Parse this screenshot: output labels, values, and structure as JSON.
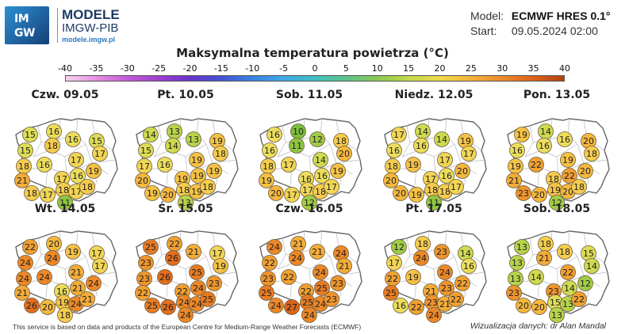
{
  "brand": {
    "logo_line1": "IM",
    "logo_line2": "GW",
    "title": "MODELE",
    "subtitle": "IMGW-PIB",
    "url": "modele.imgw.pl"
  },
  "model_info": {
    "model_label": "Model:",
    "model_value": "ECMWF HRES 0.1°",
    "start_label": "Start:",
    "start_value": "09.05.2024 02:00"
  },
  "map_title": "Maksymalna temperatura powietrza (°C)",
  "scale": {
    "labels": [
      "-40",
      "-35",
      "-30",
      "-25",
      "-20",
      "-15",
      "-10",
      "-5",
      "0",
      "5",
      "10",
      "15",
      "20",
      "25",
      "30",
      "35",
      "40"
    ],
    "colors": [
      "#f4d3ef",
      "#e58ee0",
      "#c45ad6",
      "#9b3fd0",
      "#6a33c9",
      "#4454d4",
      "#3a82e0",
      "#40a8e6",
      "#3fbfbf",
      "#5cc48a",
      "#8ac952",
      "#c2d84a",
      "#ecd94c",
      "#f4b43c",
      "#ec8a2a",
      "#e0611a",
      "#b04210"
    ]
  },
  "days": [
    {
      "label": "Czw. 09.05",
      "values": [
        15,
        16,
        16,
        15,
        15,
        18,
        17,
        17,
        18,
        16,
        21,
        18,
        17,
        17,
        16,
        19,
        18,
        17,
        18,
        11
      ]
    },
    {
      "label": "Pt. 10.05",
      "values": [
        14,
        13,
        13,
        19,
        15,
        14,
        19,
        18,
        17,
        16,
        20,
        19,
        20,
        19,
        19,
        19,
        18,
        19,
        18,
        13
      ]
    },
    {
      "label": "Sob. 11.05",
      "values": [
        16,
        10,
        12,
        18,
        16,
        11,
        14,
        20,
        18,
        17,
        19,
        20,
        17,
        16,
        16,
        19,
        17,
        18,
        17,
        12
      ]
    },
    {
      "label": "Niedz. 12.05",
      "values": [
        17,
        14,
        14,
        19,
        16,
        16,
        17,
        17,
        18,
        19,
        20,
        20,
        19,
        17,
        16,
        20,
        18,
        18,
        17,
        11
      ]
    },
    {
      "label": "Pon. 13.05",
      "values": [
        19,
        14,
        16,
        20,
        16,
        16,
        19,
        18,
        19,
        22,
        21,
        23,
        20,
        18,
        22,
        20,
        19,
        20,
        18,
        12
      ]
    },
    {
      "label": "Wt. 14.05",
      "values": [
        22,
        20,
        19,
        17,
        24,
        24,
        21,
        17,
        24,
        24,
        21,
        26,
        20,
        16,
        21,
        24,
        19,
        24,
        21,
        18
      ]
    },
    {
      "label": "Śr. 15.05",
      "values": [
        25,
        22,
        21,
        17,
        23,
        26,
        25,
        19,
        23,
        26,
        22,
        25,
        26,
        22,
        24,
        23,
        24,
        24,
        25,
        24
      ]
    },
    {
      "label": "Czw. 16.05",
      "values": [
        24,
        21,
        21,
        24,
        22,
        24,
        24,
        21,
        23,
        22,
        25,
        24,
        27,
        22,
        25,
        23,
        25,
        24,
        23,
        24
      ]
    },
    {
      "label": "Pt. 17.05",
      "values": [
        12,
        18,
        23,
        14,
        17,
        24,
        24,
        16,
        22,
        19,
        25,
        16,
        22,
        21,
        23,
        22,
        23,
        21,
        22,
        24
      ]
    },
    {
      "label": "Sob. 18.05",
      "values": [
        13,
        18,
        18,
        15,
        13,
        21,
        22,
        14,
        13,
        14,
        23,
        20,
        20,
        23,
        14,
        12,
        15,
        13,
        22,
        13
      ]
    }
  ],
  "footer": {
    "left": "This service is based on data and products of the European Centre for Medium-Range Weather Forecasts (ECMWF)",
    "right": "Wizualizacja danych: dr Alan Mandal"
  }
}
